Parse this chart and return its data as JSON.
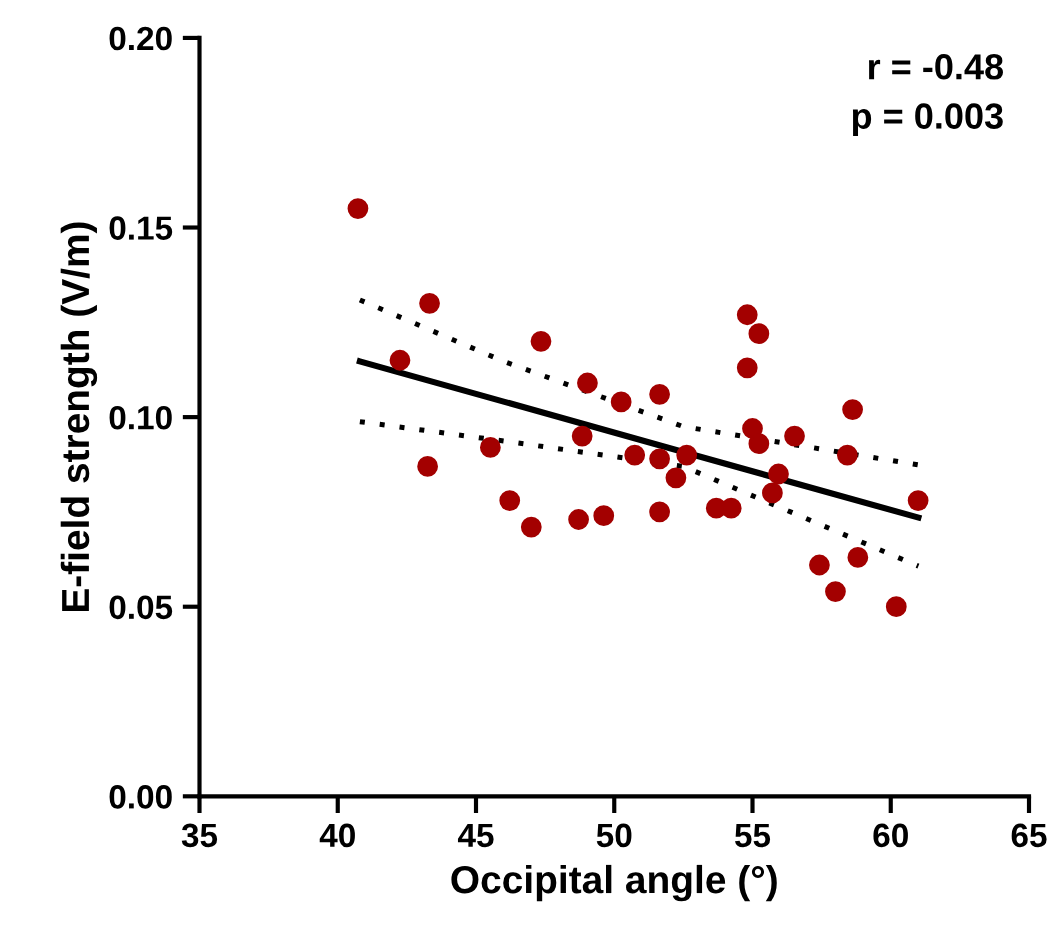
{
  "chart_data": {
    "type": "scatter",
    "xlabel": "Occipital angle (°)",
    "ylabel": "E-field strength (V/m)",
    "xlim": [
      35,
      65
    ],
    "xticks": [
      35,
      40,
      45,
      50,
      55,
      60,
      65
    ],
    "ylim": [
      0,
      0.2
    ],
    "yticks": [
      {
        "value": 0,
        "label": "0.00"
      },
      0.05,
      {
        "value": 0.1,
        "label": "0.10"
      },
      0.15,
      {
        "value": 0.2,
        "label": "0.20"
      }
    ],
    "grid": false,
    "annotations": [
      "r = -0.48",
      "p = 0.003"
    ],
    "series": [
      {
        "color": "#a30000",
        "marker": "circle",
        "x": [
          40.73,
          43.32,
          42.25,
          47.35,
          49.03,
          50.25,
          48.84,
          50.74,
          45.52,
          43.25,
          46.22,
          47.0,
          48.71,
          49.62,
          51.64,
          54.81,
          55.23,
          54.81,
          58.62,
          55.0,
          55.23,
          56.52,
          58.43,
          51.64,
          52.62,
          52.23,
          55.94,
          55.72,
          51.64,
          53.69,
          54.23,
          60.99,
          58.81,
          57.42,
          58.0,
          60.2
        ],
        "values": [
          0.155,
          0.13,
          0.115,
          0.12,
          0.109,
          0.104,
          0.095,
          0.09,
          0.092,
          0.087,
          0.078,
          0.071,
          0.073,
          0.074,
          0.106,
          0.127,
          0.122,
          0.113,
          0.102,
          0.097,
          0.093,
          0.095,
          0.09,
          0.089,
          0.09,
          0.084,
          0.085,
          0.08,
          0.075,
          0.076,
          0.076,
          0.078,
          0.063,
          0.061,
          0.054,
          0.05
        ]
      },
      {
        "type": "line",
        "color": "#000000",
        "marker": "none",
        "line_style": "solid",
        "x": [
          40.8,
          46,
          52.5,
          61
        ],
        "values": [
          0.1147,
          0.1041,
          0.0908,
          0.0735
        ]
      },
      {
        "type": "line",
        "color": "#000000",
        "marker": "none",
        "line_style": "dotted",
        "x": [
          40.8,
          46,
          52.5,
          61
        ],
        "values": [
          0.1309,
          0.1147,
          0.0975,
          0.0874
        ]
      },
      {
        "type": "line",
        "color": "#000000",
        "marker": "none",
        "line_style": "dotted",
        "x": [
          40.8,
          46,
          52.5,
          61
        ],
        "values": [
          0.0988,
          0.0937,
          0.087,
          0.0607
        ]
      }
    ]
  }
}
